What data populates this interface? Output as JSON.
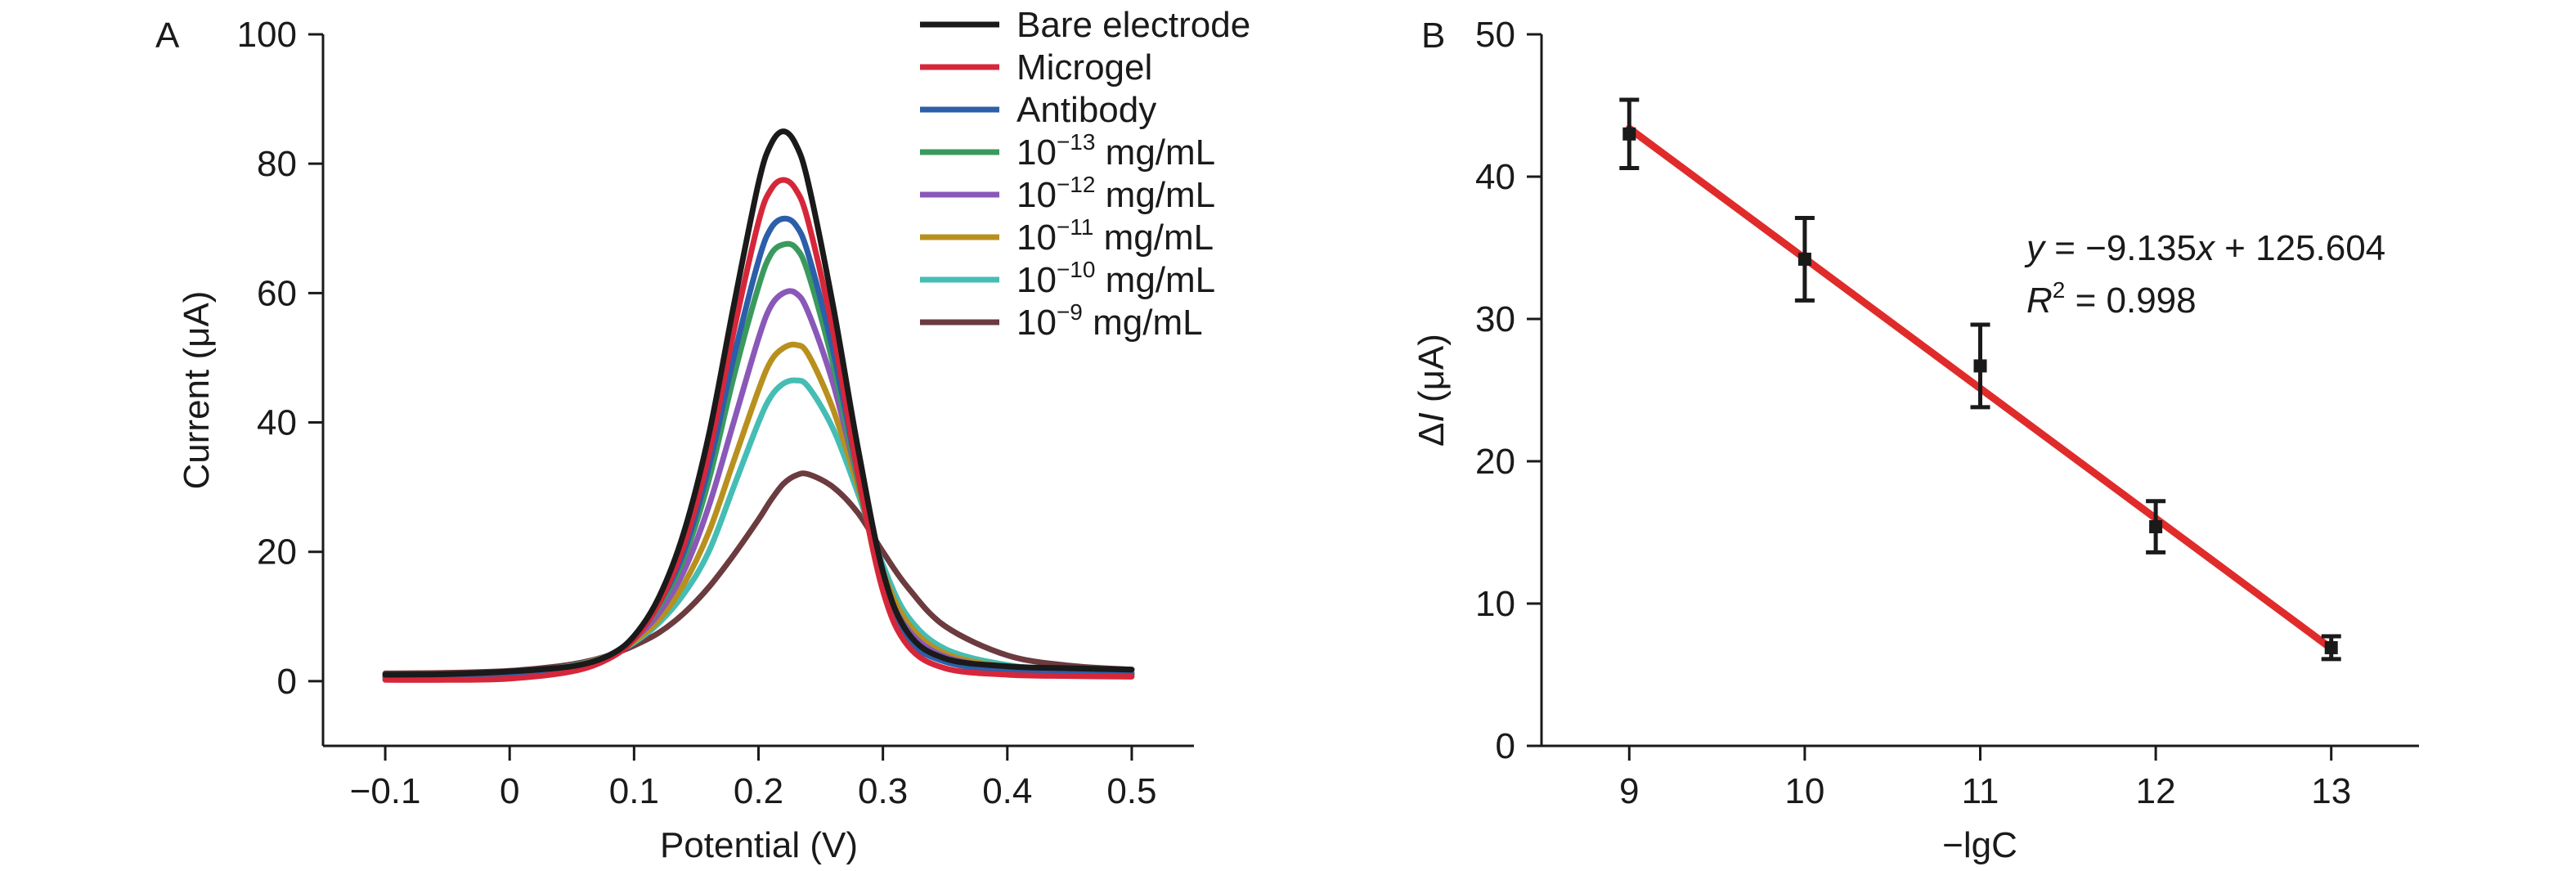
{
  "chart_data": [
    {
      "panel_label": "A",
      "type": "line",
      "xlabel": "Potential (V)",
      "ylabel": "Current (μA)",
      "xlim": [
        -0.15,
        0.55
      ],
      "ylim": [
        -10,
        100
      ],
      "xticks": [
        -0.1,
        0,
        0.1,
        0.2,
        0.3,
        0.4,
        0.5
      ],
      "xtick_labels": [
        "−0.1",
        "0",
        "0.1",
        "0.2",
        "0.3",
        "0.4",
        "0.5"
      ],
      "yticks": [
        0,
        20,
        40,
        60,
        80,
        100
      ],
      "ytick_labels": [
        "0",
        "20",
        "40",
        "60",
        "80",
        "100"
      ],
      "legend_position": "top-right",
      "grid": false,
      "series": [
        {
          "name": "Bare electrode",
          "base": "",
          "exp": "",
          "unit": "",
          "color": "#1a1a1a",
          "x": [
            -0.1,
            -0.05,
            0,
            0.05,
            0.08,
            0.1,
            0.12,
            0.14,
            0.16,
            0.18,
            0.2,
            0.21,
            0.22,
            0.23,
            0.24,
            0.26,
            0.28,
            0.3,
            0.32,
            0.35,
            0.4,
            0.45,
            0.5
          ],
          "values": [
            1.0,
            1.1,
            1.5,
            2.3,
            4.0,
            7.0,
            13,
            23,
            38,
            58,
            77,
            83,
            85,
            83,
            77,
            58,
            36,
            17,
            7.5,
            3.5,
            2.3,
            2.0,
            1.8
          ]
        },
        {
          "name": "Microgel",
          "base": "",
          "exp": "",
          "unit": "",
          "color": "#d6273a",
          "x": [
            -0.1,
            -0.05,
            0,
            0.05,
            0.08,
            0.1,
            0.12,
            0.14,
            0.16,
            0.18,
            0.2,
            0.21,
            0.22,
            0.23,
            0.24,
            0.26,
            0.28,
            0.3,
            0.32,
            0.35,
            0.4,
            0.45,
            0.5
          ],
          "values": [
            0.2,
            0.2,
            0.4,
            1.5,
            3.5,
            6.5,
            12,
            21,
            35,
            54,
            71,
            76,
            77.5,
            76,
            71,
            54,
            32,
            14,
            5.5,
            2.0,
            1.0,
            0.8,
            0.7
          ]
        },
        {
          "name": "Antibody",
          "base": "",
          "exp": "",
          "unit": "",
          "color": "#2c5faa",
          "x": [
            -0.1,
            -0.05,
            0,
            0.05,
            0.08,
            0.1,
            0.12,
            0.14,
            0.16,
            0.18,
            0.2,
            0.21,
            0.22,
            0.23,
            0.24,
            0.26,
            0.28,
            0.3,
            0.32,
            0.35,
            0.4,
            0.45,
            0.5
          ],
          "values": [
            0.5,
            0.6,
            0.9,
            2.0,
            4.0,
            6.8,
            12,
            20,
            33,
            50,
            65,
            70,
            71.5,
            70.5,
            66,
            51,
            32,
            15,
            6.5,
            3.0,
            1.6,
            1.2,
            1.0
          ]
        },
        {
          "name": "",
          "base": "10",
          "exp": "−13",
          "unit": " mg/mL",
          "color": "#3a9a5e",
          "x": [
            -0.1,
            -0.05,
            0,
            0.05,
            0.08,
            0.1,
            0.12,
            0.14,
            0.16,
            0.18,
            0.2,
            0.21,
            0.22,
            0.23,
            0.24,
            0.26,
            0.28,
            0.3,
            0.32,
            0.35,
            0.4,
            0.45,
            0.5
          ],
          "values": [
            0.6,
            0.7,
            1.0,
            2.1,
            4.0,
            6.8,
            11.5,
            19,
            31,
            47,
            61,
            66,
            67.5,
            67,
            63,
            49,
            31,
            15,
            7.0,
            3.2,
            1.8,
            1.3,
            1.1
          ]
        },
        {
          "name": "",
          "base": "10",
          "exp": "−12",
          "unit": " mg/mL",
          "color": "#8a58b8",
          "x": [
            -0.1,
            -0.05,
            0,
            0.05,
            0.08,
            0.1,
            0.12,
            0.14,
            0.16,
            0.18,
            0.2,
            0.21,
            0.22,
            0.23,
            0.24,
            0.26,
            0.28,
            0.3,
            0.32,
            0.35,
            0.4,
            0.45,
            0.5
          ],
          "values": [
            0.7,
            0.8,
            1.1,
            2.2,
            4.0,
            6.5,
            10.5,
            17,
            27,
            40,
            53,
            58,
            60,
            60,
            57,
            46,
            31,
            16,
            8.0,
            3.8,
            2.0,
            1.5,
            1.2
          ]
        },
        {
          "name": "",
          "base": "10",
          "exp": "−11",
          "unit": " mg/mL",
          "color": "#b8901e",
          "x": [
            -0.1,
            -0.05,
            0,
            0.05,
            0.08,
            0.1,
            0.12,
            0.14,
            0.16,
            0.18,
            0.2,
            0.21,
            0.22,
            0.23,
            0.24,
            0.26,
            0.28,
            0.3,
            0.32,
            0.35,
            0.4,
            0.45,
            0.5
          ],
          "values": [
            0.8,
            0.9,
            1.2,
            2.3,
            4.0,
            6.2,
            9.5,
            15,
            23,
            34,
            45,
            49.5,
            51.5,
            52,
            50.5,
            42,
            30,
            17,
            9.0,
            4.3,
            2.2,
            1.6,
            1.3
          ]
        },
        {
          "name": "",
          "base": "10",
          "exp": "−10",
          "unit": " mg/mL",
          "color": "#45bdb5",
          "x": [
            -0.1,
            -0.05,
            0,
            0.05,
            0.08,
            0.1,
            0.12,
            0.14,
            0.16,
            0.18,
            0.2,
            0.21,
            0.22,
            0.23,
            0.24,
            0.26,
            0.28,
            0.3,
            0.32,
            0.35,
            0.4,
            0.45,
            0.5
          ],
          "values": [
            0.9,
            1.0,
            1.3,
            2.4,
            4.0,
            6.0,
            9.0,
            13.5,
            20,
            30,
            40,
            44,
            46,
            46.5,
            45.5,
            39,
            29,
            18,
            10,
            5.0,
            2.5,
            1.7,
            1.4
          ]
        },
        {
          "name": "",
          "base": "10",
          "exp": "−9",
          "unit": " mg/mL",
          "color": "#6b3b3f",
          "x": [
            -0.1,
            -0.05,
            0,
            0.05,
            0.08,
            0.1,
            0.12,
            0.14,
            0.16,
            0.18,
            0.2,
            0.21,
            0.22,
            0.23,
            0.24,
            0.26,
            0.28,
            0.3,
            0.32,
            0.35,
            0.4,
            0.45,
            0.5
          ],
          "values": [
            1.2,
            1.3,
            1.6,
            2.6,
            4.0,
            5.5,
            7.5,
            10.5,
            14.5,
            19.5,
            25,
            28,
            30.5,
            31.8,
            32,
            30,
            26,
            20,
            14.5,
            8.5,
            4.0,
            2.4,
            1.8
          ]
        }
      ]
    },
    {
      "panel_label": "B",
      "type": "scatter",
      "xlabel": "−lgC",
      "ylabel_prefix": "Δ",
      "ylabel_var": "I",
      "ylabel_unit": " (μA)",
      "xlim": [
        8.5,
        13.5
      ],
      "ylim": [
        0,
        50
      ],
      "xticks": [
        9,
        10,
        11,
        12,
        13
      ],
      "yticks": [
        0,
        10,
        20,
        30,
        40,
        50
      ],
      "grid": false,
      "points": {
        "x": [
          9,
          10,
          11,
          12,
          13
        ],
        "values": [
          43.0,
          34.2,
          26.7,
          15.4,
          6.9
        ],
        "error": [
          2.4,
          2.9,
          2.9,
          1.8,
          0.8
        ]
      },
      "fit": {
        "slope": -9.135,
        "intercept": 125.604,
        "color": "#e02b2b",
        "equation_y": "y",
        "equation_rest": " = −9.135",
        "equation_x": "x",
        "equation_tail": " + 125.604",
        "r2_var": "R",
        "r2_sup": "2",
        "r2_value": " = 0.998"
      }
    }
  ]
}
